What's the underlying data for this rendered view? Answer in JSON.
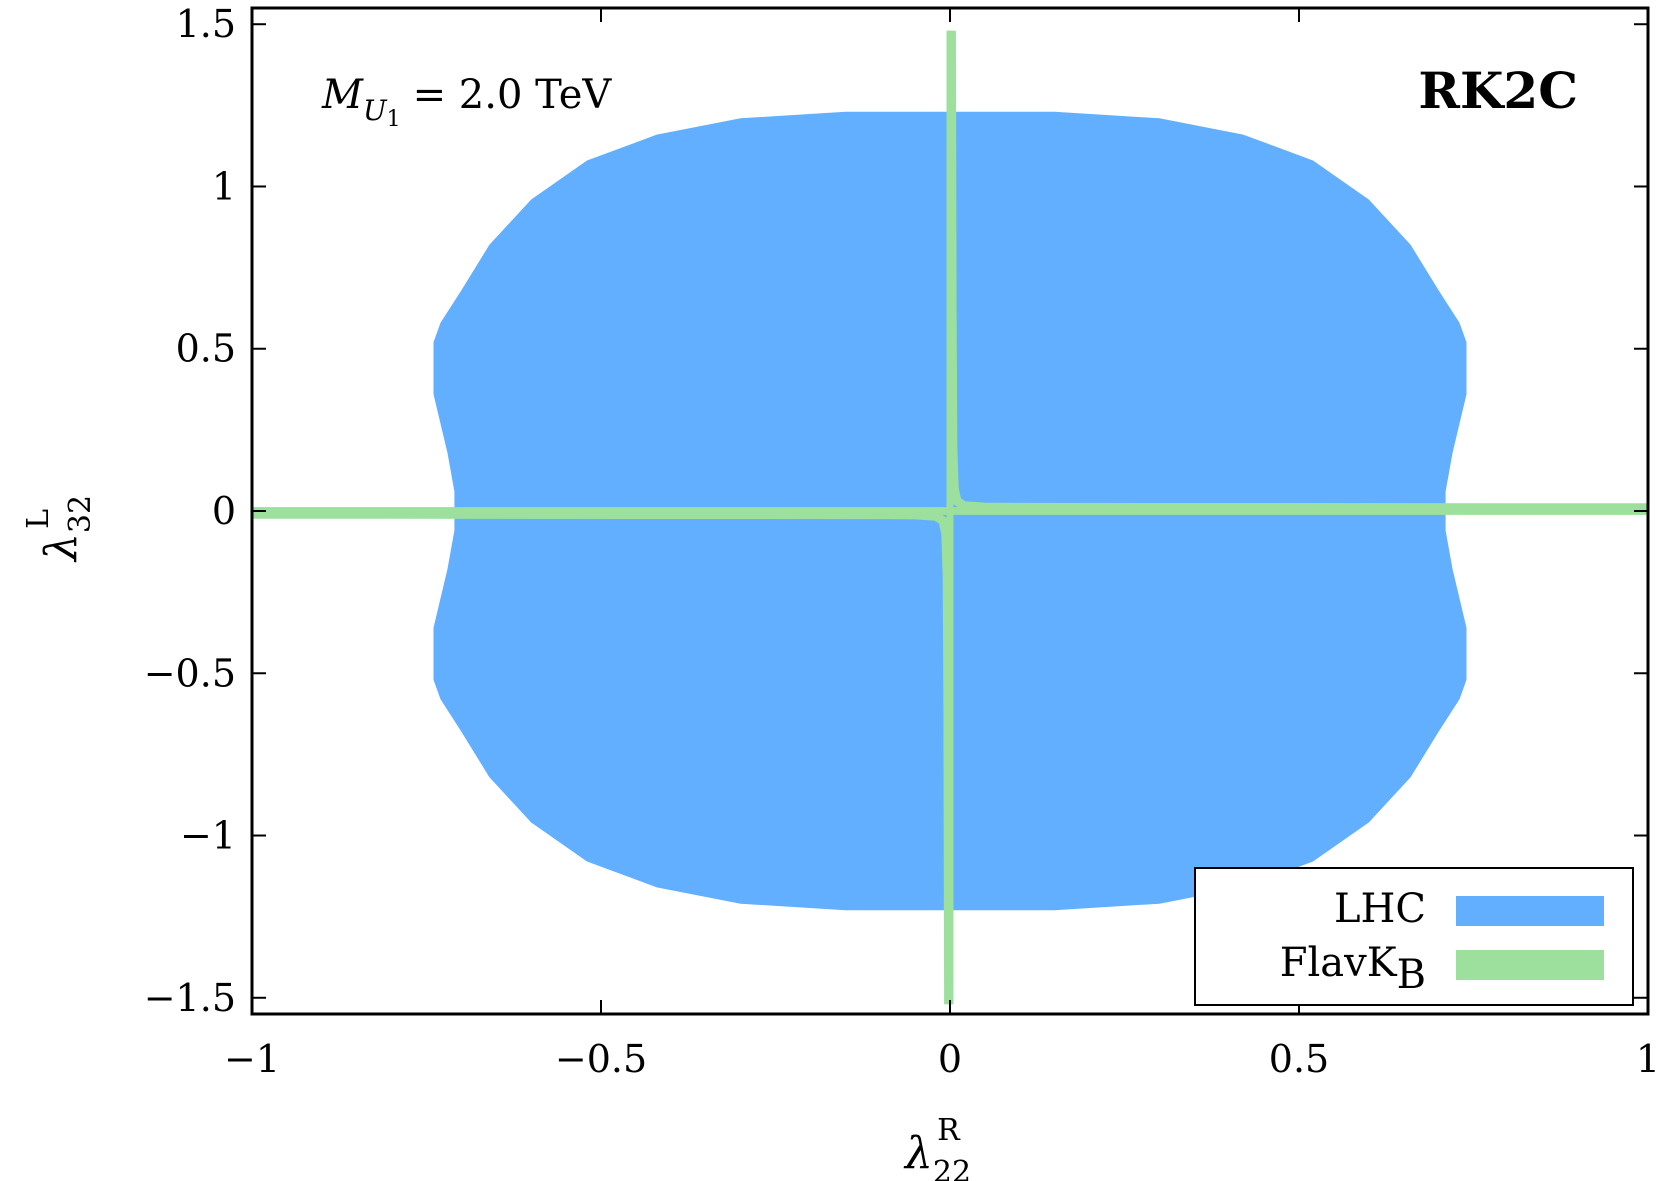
{
  "chart_data": {
    "type": "area",
    "title": "",
    "xlabel": "λ",
    "xlabel_sup": "R",
    "xlabel_sub": "22",
    "ylabel": "λ",
    "ylabel_sup": "L",
    "ylabel_sub": "32",
    "xlim": [
      -1,
      1
    ],
    "ylim": [
      -1.55,
      1.55
    ],
    "x_ticks": [
      {
        "value": -1,
        "label": "−1"
      },
      {
        "value": -0.5,
        "label": "−0.5"
      },
      {
        "value": 0,
        "label": "0"
      },
      {
        "value": 0.5,
        "label": "0.5"
      },
      {
        "value": 1,
        "label": "1"
      }
    ],
    "y_ticks": [
      {
        "value": 1.5,
        "label": "1.5"
      },
      {
        "value": 1,
        "label": "1"
      },
      {
        "value": 0.5,
        "label": "0.5"
      },
      {
        "value": 0,
        "label": "0"
      },
      {
        "value": -0.5,
        "label": "−0.5"
      },
      {
        "value": -1,
        "label": "−1"
      },
      {
        "value": -1.5,
        "label": "−1.5"
      }
    ],
    "grid": false,
    "legend_position": "bottom-right",
    "annotations": {
      "mass_label_main": "M",
      "mass_label_sub": "U",
      "mass_label_subsub": "1",
      "mass_value": "= 2.0 TeV",
      "scenario": "RK2C"
    },
    "series": [
      {
        "name": "LHC",
        "color": "#63afff",
        "kind": "region",
        "boundary": [
          [
            0.0,
            1.23
          ],
          [
            0.15,
            1.23
          ],
          [
            0.3,
            1.21
          ],
          [
            0.42,
            1.16
          ],
          [
            0.52,
            1.08
          ],
          [
            0.6,
            0.96
          ],
          [
            0.66,
            0.82
          ],
          [
            0.7,
            0.68
          ],
          [
            0.73,
            0.58
          ],
          [
            0.74,
            0.52
          ],
          [
            0.74,
            0.36
          ],
          [
            0.72,
            0.18
          ],
          [
            0.71,
            0.06
          ],
          [
            0.71,
            0.0
          ],
          [
            0.71,
            -0.06
          ],
          [
            0.72,
            -0.18
          ],
          [
            0.74,
            -0.36
          ],
          [
            0.74,
            -0.52
          ],
          [
            0.73,
            -0.58
          ],
          [
            0.7,
            -0.68
          ],
          [
            0.66,
            -0.82
          ],
          [
            0.6,
            -0.96
          ],
          [
            0.52,
            -1.08
          ],
          [
            0.42,
            -1.16
          ],
          [
            0.3,
            -1.21
          ],
          [
            0.15,
            -1.23
          ],
          [
            0.0,
            -1.23
          ],
          [
            -0.15,
            -1.23
          ],
          [
            -0.3,
            -1.21
          ],
          [
            -0.42,
            -1.16
          ],
          [
            -0.52,
            -1.08
          ],
          [
            -0.6,
            -0.96
          ],
          [
            -0.66,
            -0.82
          ],
          [
            -0.7,
            -0.68
          ],
          [
            -0.73,
            -0.58
          ],
          [
            -0.74,
            -0.52
          ],
          [
            -0.74,
            -0.36
          ],
          [
            -0.72,
            -0.18
          ],
          [
            -0.71,
            -0.06
          ],
          [
            -0.71,
            0.0
          ],
          [
            -0.71,
            0.06
          ],
          [
            -0.72,
            0.18
          ],
          [
            -0.74,
            0.36
          ],
          [
            -0.74,
            0.52
          ],
          [
            -0.73,
            0.58
          ],
          [
            -0.7,
            0.68
          ],
          [
            -0.66,
            0.82
          ],
          [
            -0.6,
            0.96
          ],
          [
            -0.52,
            1.08
          ],
          [
            -0.42,
            1.16
          ],
          [
            -0.3,
            1.21
          ],
          [
            -0.15,
            1.23
          ]
        ]
      },
      {
        "name": "FlavK",
        "name_sub": "B",
        "color": "#9de09d",
        "kind": "bands",
        "horizontal_band": {
          "y": 0,
          "x_range": [
            -1,
            1
          ],
          "half_width": 0.012
        },
        "vertical_band": {
          "x": 0,
          "y_range": [
            -1.52,
            1.48
          ],
          "half_width": 0.005
        },
        "hyperbola_upper": [
          [
            0.002,
            1.48
          ],
          [
            0.003,
            0.6
          ],
          [
            0.004,
            0.2
          ],
          [
            0.006,
            0.07
          ],
          [
            0.01,
            0.03
          ],
          [
            0.02,
            0.016
          ],
          [
            0.05,
            0.012
          ],
          [
            0.1,
            0.011
          ],
          [
            1,
            0.01
          ]
        ],
        "hyperbola_lower": [
          [
            -0.002,
            -1.52
          ],
          [
            -0.003,
            -0.6
          ],
          [
            -0.004,
            -0.2
          ],
          [
            -0.006,
            -0.07
          ],
          [
            -0.01,
            -0.03
          ],
          [
            -0.02,
            -0.016
          ],
          [
            -0.05,
            -0.012
          ],
          [
            -0.1,
            -0.011
          ],
          [
            -1,
            -0.01
          ]
        ]
      }
    ]
  }
}
